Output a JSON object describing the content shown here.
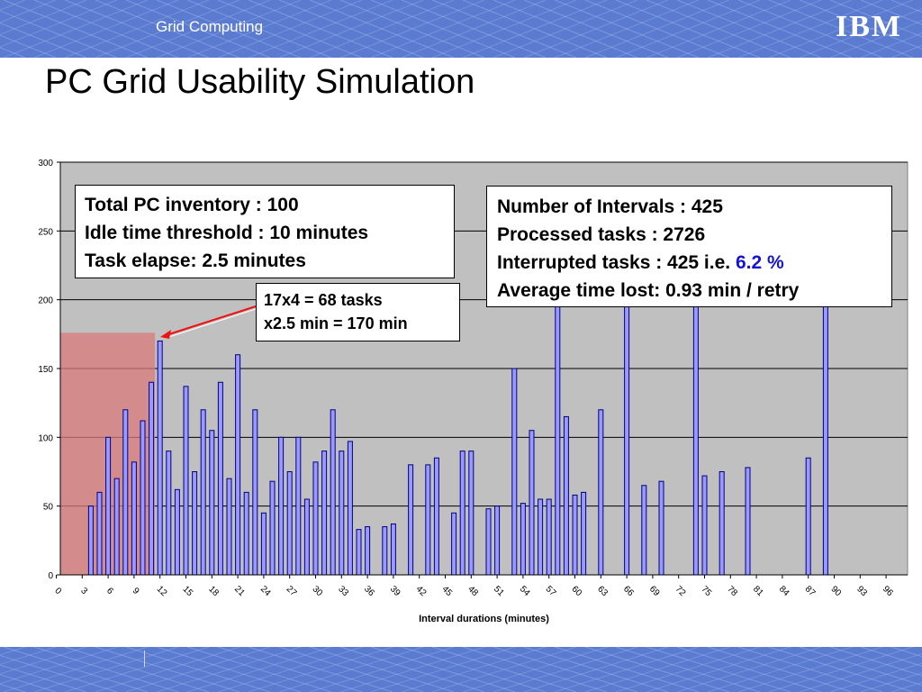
{
  "header": {
    "title": "Grid Computing",
    "logo_text": "IBM"
  },
  "slide": {
    "title": "PC Grid Usability Simulation"
  },
  "colors": {
    "header_bg": "#5a7bd0",
    "plot_bg": "#c0c0c0",
    "bar_fill": "#9999ff",
    "bar_stroke": "#000080",
    "highlight": "#d97a7a",
    "arrow": "#ee1111",
    "accent_text": "#1414d2"
  },
  "notes": {
    "left": [
      "Total PC inventory : 100",
      "Idle time threshold : 10 minutes",
      "Task elapse: 2.5 minutes"
    ],
    "middle": [
      "17x4 = 68 tasks",
      "x2.5 min = 170 min"
    ],
    "right": {
      "line1": "Number of Intervals : 425",
      "line2": "Processed tasks : 2726",
      "line3_prefix": "Interrupted tasks : 425  i.e. ",
      "line3_highlight": "6.2 %",
      "line4": "Average time lost: 0.93 min / retry"
    }
  },
  "chart_data": {
    "type": "bar",
    "xlabel": "Interval durations (minutes)",
    "ylabel": "",
    "ylim": [
      0,
      300
    ],
    "yticks": [
      0,
      50,
      100,
      150,
      200,
      250,
      300
    ],
    "xtick_labels": [
      "0",
      "3",
      "6",
      "9",
      "12",
      "15",
      "18",
      "21",
      "24",
      "27",
      "30",
      "33",
      "36",
      "39",
      "42",
      "45",
      "48",
      "51",
      "54",
      "57",
      "60",
      "63",
      "66",
      "69",
      "72",
      "75",
      "78",
      "81",
      "84",
      "87",
      "90",
      "93",
      "96"
    ],
    "grid": true,
    "x": [
      4,
      5,
      6,
      7,
      8,
      9,
      10,
      11,
      12,
      13,
      14,
      15,
      16,
      17,
      18,
      19,
      20,
      21,
      22,
      23,
      24,
      25,
      26,
      27,
      28,
      29,
      30,
      31,
      32,
      33,
      34,
      35,
      36,
      38,
      39,
      41,
      43,
      44,
      46,
      47,
      48,
      50,
      51,
      53,
      54,
      55,
      56,
      57,
      58,
      59,
      60,
      61,
      63,
      66,
      68,
      70,
      74,
      75,
      77,
      80,
      87,
      89
    ],
    "values": [
      50,
      60,
      100,
      70,
      120,
      82,
      112,
      140,
      170,
      90,
      62,
      137,
      75,
      120,
      105,
      140,
      70,
      160,
      60,
      120,
      45,
      68,
      100,
      75,
      100,
      55,
      82,
      90,
      120,
      90,
      97,
      33,
      35,
      35,
      37,
      80,
      80,
      85,
      45,
      90,
      90,
      48,
      50,
      150,
      52,
      105,
      55,
      55,
      195,
      115,
      58,
      60,
      120,
      195,
      65,
      68,
      195,
      72,
      75,
      78,
      85,
      195
    ],
    "highlight_region": {
      "x_from": 0,
      "x_to": 11,
      "y_to": 176
    }
  }
}
